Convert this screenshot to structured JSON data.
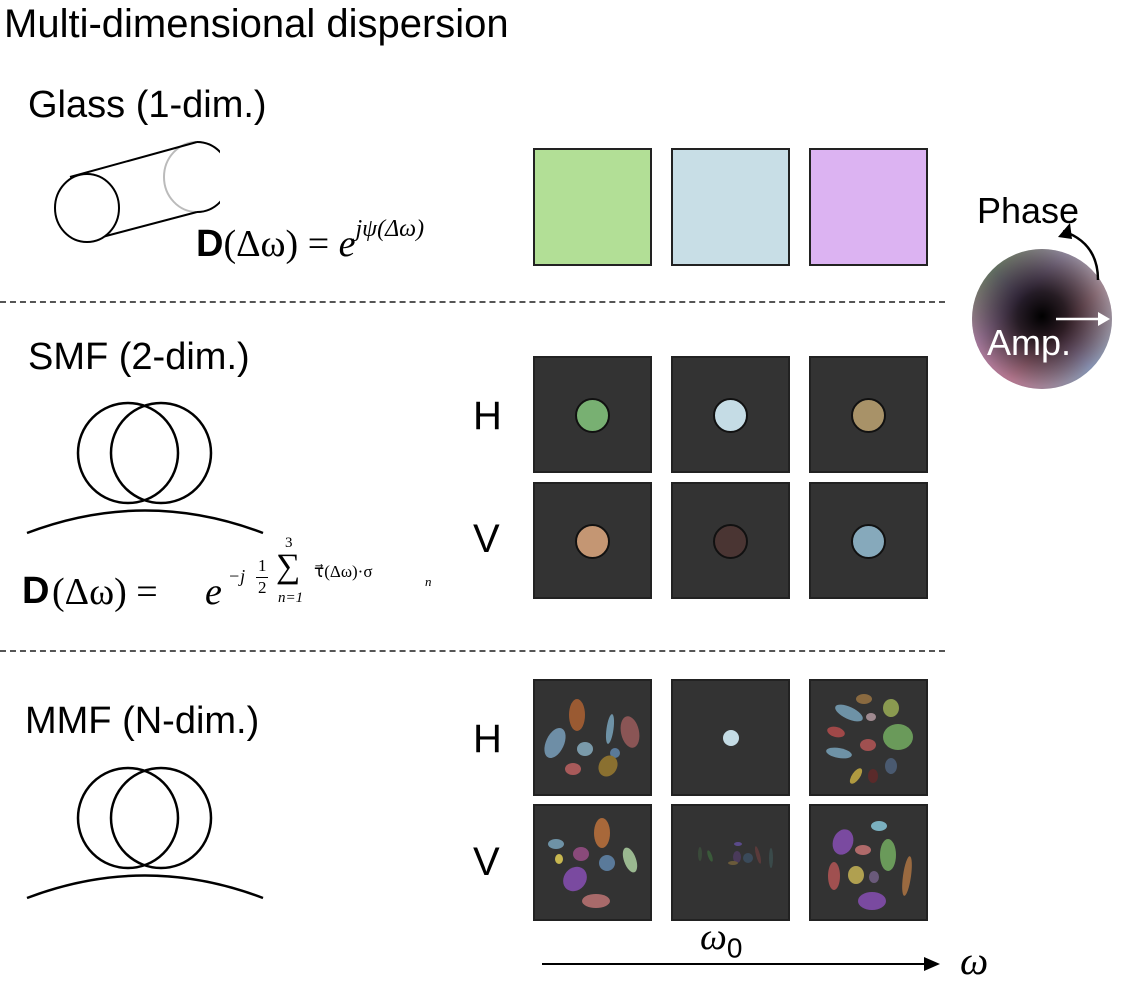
{
  "title": "Multi-dimensional dispersion",
  "sections": [
    {
      "label": "Glass (1-dim.)",
      "equation": {
        "lhs_bold": "D",
        "lhs_rest": "(Δω) = ",
        "base": "e",
        "exponent": "jψ(Δω)"
      },
      "panel_colors": [
        "#b2df96",
        "#c8dee6",
        "#dcb3f2"
      ]
    },
    {
      "label": "SMF (2-dim.)",
      "row_labels": [
        "H",
        "V"
      ],
      "equation": {
        "lhs_bold": "D",
        "lhs_rest": "(Δω) = ",
        "base": "e",
        "exp_prefix": "−j",
        "frac_num": "1",
        "frac_den": "2",
        "sum_top": "3",
        "sum_bottom": "n=1",
        "sum_symbol": "∑",
        "exp_suffix": "τ⃗(Δω)·σ",
        "exp_sub": "n"
      },
      "dot_colors": {
        "H": [
          "#78b072",
          "#c5dce5",
          "#a89268"
        ],
        "V": [
          "#c49673",
          "#4a3533",
          "#86a9bb"
        ]
      }
    },
    {
      "label": "MMF (N-dim.)",
      "row_labels": [
        "H",
        "V"
      ]
    }
  ],
  "wheel": {
    "phase_label": "Phase",
    "amp_label": "Amp."
  },
  "axis": {
    "center_label": "ω",
    "center_sub": "0",
    "axis_label": "ω"
  },
  "colors": {
    "panel_bg": "#333333",
    "panel_border": "#222222"
  }
}
